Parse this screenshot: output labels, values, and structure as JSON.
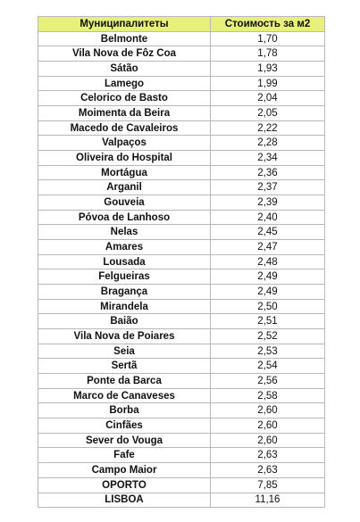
{
  "table": {
    "header": {
      "municipality": "Муниципалитеты",
      "price": "Стоимость за м2"
    },
    "header_color": "#e6f07a",
    "rows": [
      {
        "name": "Belmonte",
        "price": "1,70"
      },
      {
        "name": "Vila Nova de Fôz Coa",
        "price": "1,78"
      },
      {
        "name": "Sátão",
        "price": "1,93"
      },
      {
        "name": "Lamego",
        "price": "1,99"
      },
      {
        "name": "Celorico de Basto",
        "price": "2,04"
      },
      {
        "name": "Moimenta da Beira",
        "price": "2,05"
      },
      {
        "name": "Macedo de Cavaleiros",
        "price": "2,22"
      },
      {
        "name": "Valpaços",
        "price": "2,28"
      },
      {
        "name": "Oliveira do Hospital",
        "price": "2,34"
      },
      {
        "name": "Mortágua",
        "price": "2,36"
      },
      {
        "name": "Arganil",
        "price": "2,37"
      },
      {
        "name": "Gouveia",
        "price": "2,39"
      },
      {
        "name": "Póvoa de Lanhoso",
        "price": "2,40"
      },
      {
        "name": "Nelas",
        "price": "2,45"
      },
      {
        "name": "Amares",
        "price": "2,47"
      },
      {
        "name": "Lousada",
        "price": "2,48"
      },
      {
        "name": "Felgueiras",
        "price": "2,49"
      },
      {
        "name": "Bragança",
        "price": "2,49"
      },
      {
        "name": "Mirandela",
        "price": "2,50"
      },
      {
        "name": "Baião",
        "price": "2,51"
      },
      {
        "name": "Vila Nova de Poiares",
        "price": "2,52"
      },
      {
        "name": "Seia",
        "price": "2,53"
      },
      {
        "name": "Sertã",
        "price": "2,54"
      },
      {
        "name": "Ponte da Barca",
        "price": "2,56"
      },
      {
        "name": "Marco de Canaveses",
        "price": "2,58"
      },
      {
        "name": "Borba",
        "price": "2,60"
      },
      {
        "name": "Cinfães",
        "price": "2,60"
      },
      {
        "name": "Sever do Vouga",
        "price": "2,60"
      },
      {
        "name": "Fafe",
        "price": "2,63"
      },
      {
        "name": "Campo Maior",
        "price": "2,63"
      },
      {
        "name": "OPORTO",
        "price": "7,85"
      },
      {
        "name": "LISBOA",
        "price": "11,16"
      }
    ]
  }
}
